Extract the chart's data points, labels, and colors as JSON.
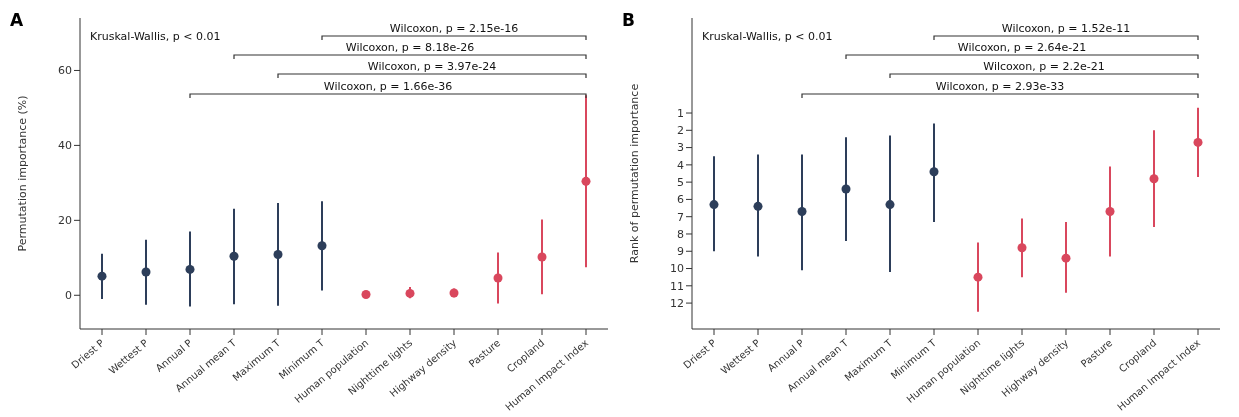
{
  "chart_data": [
    {
      "type": "scatter",
      "title": "A",
      "ylabel": "Permutation importance (%)",
      "categories": [
        "Driest P",
        "Wettest P",
        "Annual P",
        "Annual mean T",
        "Maximum T",
        "Minimum T",
        "Human population",
        "Nighttime lights",
        "Highway density",
        "Pasture",
        "Cropland",
        "Human Impact Index"
      ],
      "values": [
        5.1,
        6.2,
        6.9,
        10.4,
        10.9,
        13.2,
        0.2,
        0.5,
        0.6,
        4.6,
        10.2,
        30.4
      ],
      "errors": [
        [
          -1.0,
          11.1
        ],
        [
          -2.5,
          14.8
        ],
        [
          -3.0,
          17.0
        ],
        [
          -2.4,
          23.1
        ],
        [
          -2.8,
          24.6
        ],
        [
          1.3,
          25.1
        ],
        [
          0.0,
          0.5
        ],
        [
          -0.8,
          2.2
        ],
        [
          -0.5,
          1.8
        ],
        [
          -2.2,
          11.4
        ],
        [
          0.3,
          20.2
        ],
        [
          7.5,
          53.4
        ]
      ],
      "colors": [
        "#2d3e5a",
        "#2d3e5a",
        "#2d3e5a",
        "#2d3e5a",
        "#2d3e5a",
        "#2d3e5a",
        "#d9475d",
        "#d9475d",
        "#d9475d",
        "#d9475d",
        "#d9475d",
        "#d9475d"
      ],
      "ylim": [
        -9,
        74
      ],
      "yticks": [
        0,
        20,
        40,
        60
      ],
      "grid": false,
      "legend": false,
      "marker": "circle",
      "annotations": [
        "Kruskal-Wallis, p < 0.01",
        "Wilcoxon, p = 2.15e-16",
        "Wilcoxon, p = 8.18e-26",
        "Wilcoxon, p = 3.97e-24",
        "Wilcoxon, p = 1.66e-36"
      ]
    },
    {
      "type": "scatter",
      "title": "B",
      "ylabel": "Rank of permutation importance",
      "categories": [
        "Driest P",
        "Wettest P",
        "Annual P",
        "Annual mean T",
        "Maximum T",
        "Minimum T",
        "Human population",
        "Nighttime lights",
        "Highway density",
        "Pasture",
        "Cropland",
        "Human Impact Index"
      ],
      "values": [
        6.3,
        6.4,
        6.7,
        5.4,
        6.3,
        4.4,
        10.5,
        8.8,
        9.4,
        6.7,
        4.8,
        2.7
      ],
      "errors": [
        [
          3.5,
          9.0
        ],
        [
          3.4,
          9.3
        ],
        [
          3.4,
          10.1
        ],
        [
          2.4,
          8.4
        ],
        [
          2.3,
          10.2
        ],
        [
          1.6,
          7.3
        ],
        [
          8.5,
          12.5
        ],
        [
          7.1,
          10.5
        ],
        [
          7.3,
          11.4
        ],
        [
          4.1,
          9.3
        ],
        [
          2.0,
          7.6
        ],
        [
          0.7,
          4.7
        ]
      ],
      "colors": [
        "#2d3e5a",
        "#2d3e5a",
        "#2d3e5a",
        "#2d3e5a",
        "#2d3e5a",
        "#2d3e5a",
        "#d9475d",
        "#d9475d",
        "#d9475d",
        "#d9475d",
        "#d9475d",
        "#d9475d"
      ],
      "ylim": [
        13.5,
        -4.5
      ],
      "yticks": [
        1,
        2,
        3,
        4,
        5,
        6,
        7,
        8,
        9,
        10,
        11,
        12
      ],
      "grid": false,
      "legend": false,
      "marker": "circle",
      "annotations": [
        "Kruskal-Wallis, p < 0.01",
        "Wilcoxon, p = 1.52e-11",
        "Wilcoxon, p = 2.64e-21",
        "Wilcoxon, p = 2.2e-21",
        "Wilcoxon, p = 2.93e-33"
      ]
    }
  ]
}
